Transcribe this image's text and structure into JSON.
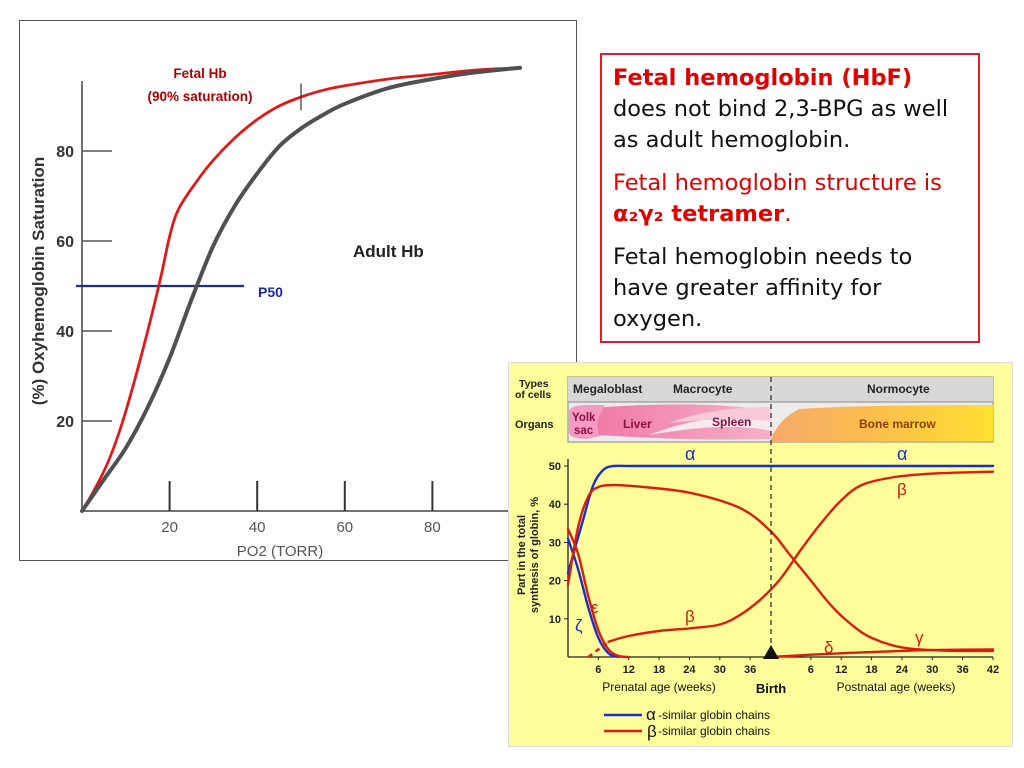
{
  "textbox": {
    "heading": "Fetal hemoglobin (HbF)",
    "line1": "does not bind 2,3-BPG as well as adult hemoglobin.",
    "structure_text": "Fetal hemoglobin structure is ",
    "structure_formula": "α₂γ₂ tetramer",
    "structure_end": ".",
    "affinity_text": "Fetal hemoglobin needs to have greater affinity for oxygen."
  },
  "chart_data": [
    {
      "type": "line",
      "xlabel": "PO2 (TORR)",
      "ylabel": "(%) Oxyhemoglobin Saturation",
      "x_ticks": [
        "20",
        "40",
        "60",
        "80"
      ],
      "y_ticks": [
        "20",
        "40",
        "60",
        "80"
      ],
      "xlim": [
        0,
        100
      ],
      "ylim": [
        0,
        100
      ],
      "grid": false,
      "annotations": {
        "fetal_label_1": "Fetal Hb",
        "fetal_label_2": "(90% saturation)",
        "adult_label": "Adult Hb",
        "p50_label": "P50"
      },
      "p50_line": {
        "y": 50,
        "x_range": [
          0,
          37
        ]
      },
      "series": [
        {
          "key": "fetal",
          "color": "#e01818",
          "x": [
            0,
            3,
            6,
            9,
            12,
            15,
            18,
            20,
            22,
            26,
            30,
            35,
            40,
            45,
            50,
            55,
            60,
            70,
            80,
            90,
            100
          ],
          "y": [
            0,
            5,
            11,
            19,
            29,
            40,
            52,
            61,
            67,
            73,
            78,
            83,
            87,
            90,
            92,
            93.5,
            94.5,
            96,
            97,
            98,
            98.5
          ]
        },
        {
          "key": "adult",
          "color": "#505050",
          "x": [
            0,
            5,
            10,
            15,
            20,
            25,
            30,
            35,
            40,
            45,
            50,
            55,
            60,
            70,
            80,
            90,
            100
          ],
          "y": [
            0,
            7,
            14,
            23,
            34,
            47,
            59,
            68,
            75,
            81,
            85,
            88,
            90.5,
            94,
            96,
            97.5,
            98.5
          ]
        }
      ]
    },
    {
      "type": "line",
      "ylabel": "Part in the total synthesis of globin, %",
      "y_ticks": [
        "10",
        "20",
        "30",
        "40",
        "50"
      ],
      "x_ticks": [
        "6",
        "12",
        "18",
        "24",
        "30",
        "36",
        "6",
        "12",
        "18",
        "24",
        "30",
        "36",
        "42"
      ],
      "prenatal_label": "Prenatal age (weeks)",
      "postnatal_label": "Postnatal age (weeks)",
      "birth_label": "Birth",
      "types_label": "Types of cells",
      "organs_label": "Organs",
      "cell_types": [
        "Megaloblast",
        "Macrocyte",
        "Normocyte"
      ],
      "organs": [
        "Yolk sac",
        "Liver",
        "Spleen",
        "Bone marrow"
      ],
      "series_labels": {
        "alpha": "α",
        "alpha2": "α",
        "beta": "β",
        "beta2": "β",
        "epsilon": "ε",
        "zeta": "ζ",
        "gamma": "γ",
        "delta": "δ"
      },
      "legend": {
        "alpha_symbol": "α",
        "alpha_text": "-similar globin chains",
        "beta_symbol": "β",
        "beta_text": "-similar globin chains"
      },
      "colors": {
        "alpha_like": "#1a2ecc",
        "beta_like": "#d81e10"
      },
      "series": [
        {
          "key": "alpha",
          "group": "alpha-like",
          "x": [
            0,
            3,
            5,
            7,
            9,
            12,
            20,
            40,
            60,
            84
          ],
          "y": [
            22,
            36,
            45,
            49,
            50,
            50,
            50,
            50,
            50,
            50
          ]
        },
        {
          "key": "zeta",
          "group": "alpha-like",
          "x": [
            0,
            2,
            4,
            6,
            8,
            10
          ],
          "y": [
            31,
            23,
            13,
            5,
            1,
            0
          ]
        },
        {
          "key": "gamma",
          "group": "beta-like",
          "x": [
            0,
            2,
            4,
            6,
            9,
            14,
            24,
            34,
            40,
            44,
            48,
            52,
            56,
            60,
            66,
            74,
            84
          ],
          "y": [
            19,
            34,
            42,
            44.5,
            45,
            44.6,
            43,
            39,
            33,
            26.5,
            20,
            13.5,
            8.5,
            5,
            2.5,
            1.7,
            1.6
          ]
        },
        {
          "key": "epsilon",
          "group": "beta-like",
          "x": [
            0,
            2,
            4,
            6,
            8,
            10,
            12
          ],
          "y": [
            33.5,
            27,
            16,
            7,
            2,
            0.3,
            0
          ]
        },
        {
          "key": "beta_prenatal",
          "group": "beta-like",
          "x": [
            4,
            6,
            8,
            12,
            18,
            24,
            30,
            34,
            38,
            42,
            46,
            50,
            54,
            58,
            64,
            72,
            84
          ],
          "y": [
            0,
            2,
            4,
            5.5,
            6.8,
            7.5,
            8.5,
            11,
            15,
            20.5,
            28,
            35,
            41,
            45,
            47,
            48,
            48.5
          ]
        },
        {
          "key": "delta",
          "group": "beta-like",
          "x": [
            40,
            48,
            56,
            64,
            72,
            84
          ],
          "y": [
            0,
            0.6,
            1.1,
            1.5,
            1.8,
            2
          ]
        }
      ]
    }
  ]
}
